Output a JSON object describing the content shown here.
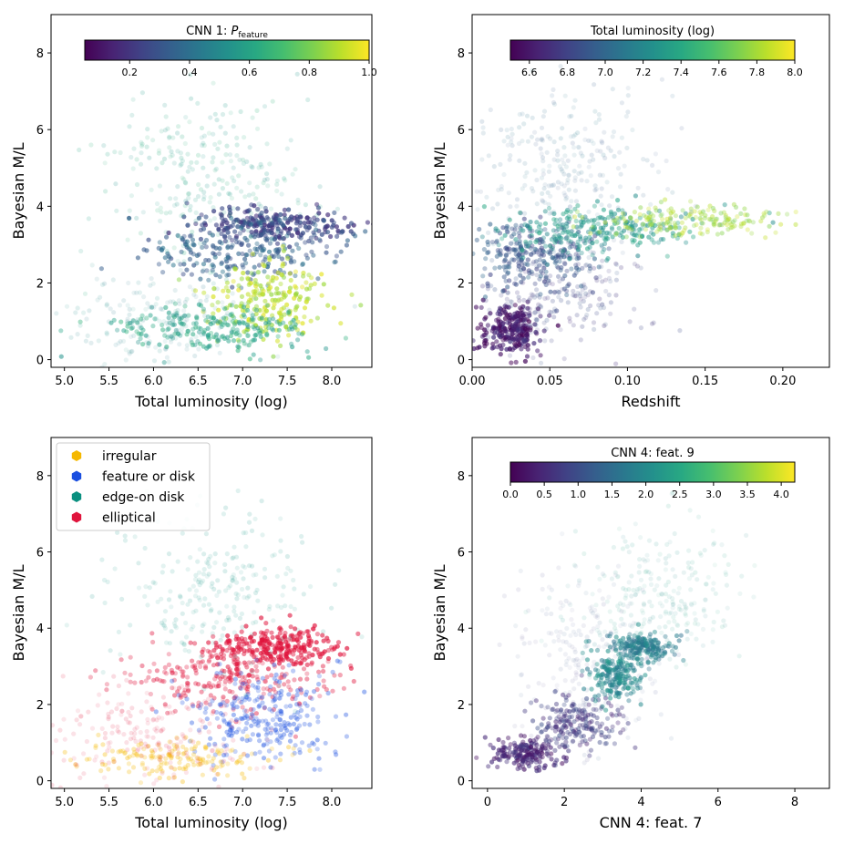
{
  "chart_data": [
    {
      "type": "scatter",
      "panel": "top-left",
      "xlabel": "Total luminosity (log)",
      "ylabel": "Bayesian M/L",
      "xlim": [
        4.85,
        8.45
      ],
      "ylim": [
        -0.2,
        9
      ],
      "xticks": [
        "5.0",
        "5.5",
        "6.0",
        "6.5",
        "7.0",
        "7.5",
        "8.0"
      ],
      "xtick_values": [
        5.0,
        5.5,
        6.0,
        6.5,
        7.0,
        7.5,
        8.0
      ],
      "yticks": [
        "0",
        "2",
        "4",
        "6",
        "8"
      ],
      "ytick_values": [
        0,
        2,
        4,
        6,
        8
      ],
      "colorbar": {
        "title_main": "CNN 1: ",
        "title_italic": "P",
        "title_sub": "feature",
        "range": [
          0.05,
          1.0
        ],
        "ticks": [
          "0.2",
          "0.4",
          "0.6",
          "0.8",
          "1.0"
        ],
        "tick_values": [
          0.2,
          0.4,
          0.6,
          0.8,
          1.0
        ],
        "colormap": "viridis"
      },
      "clusters": [
        {
          "cx": 7.3,
          "cy": 3.5,
          "sx": 0.45,
          "sy": 0.22,
          "n": 260,
          "cval": 0.25,
          "alpha": 0.8
        },
        {
          "cx": 7.0,
          "cy": 2.8,
          "sx": 0.55,
          "sy": 0.35,
          "n": 220,
          "cval": 0.35,
          "alpha": 0.65
        },
        {
          "cx": 7.3,
          "cy": 1.5,
          "sx": 0.35,
          "sy": 0.55,
          "n": 220,
          "cval": 0.9,
          "alpha": 0.7
        },
        {
          "cx": 6.7,
          "cy": 0.8,
          "sx": 0.55,
          "sy": 0.3,
          "n": 220,
          "cval": 0.6,
          "alpha": 0.55
        },
        {
          "cx": 6.6,
          "cy": 4.8,
          "sx": 0.6,
          "sy": 1.0,
          "n": 260,
          "cval": 0.6,
          "alpha": 0.2
        },
        {
          "cx": 6.1,
          "cy": 1.0,
          "sx": 0.6,
          "sy": 0.6,
          "n": 200,
          "cval": 0.5,
          "alpha": 0.15
        }
      ]
    },
    {
      "type": "scatter",
      "panel": "top-right",
      "xlabel": "Redshift",
      "ylabel": "Bayesian M/L",
      "xlim": [
        0.0,
        0.23
      ],
      "ylim": [
        -0.2,
        9
      ],
      "xticks": [
        "0.00",
        "0.05",
        "0.10",
        "0.15",
        "0.20"
      ],
      "xtick_values": [
        0.0,
        0.05,
        0.1,
        0.15,
        0.2
      ],
      "yticks": [
        "0",
        "2",
        "4",
        "6",
        "8"
      ],
      "ytick_values": [
        0,
        2,
        4,
        6,
        8
      ],
      "colorbar": {
        "title_main": "Total luminosity (log)",
        "title_italic": "",
        "title_sub": "",
        "range": [
          6.5,
          8.0
        ],
        "ticks": [
          "6.6",
          "6.8",
          "7.0",
          "7.2",
          "7.4",
          "7.6",
          "7.8",
          "8.0"
        ],
        "tick_values": [
          6.6,
          6.8,
          7.0,
          7.2,
          7.4,
          7.6,
          7.8,
          8.0
        ],
        "colormap": "viridis"
      },
      "clusters": [
        {
          "cx": 0.025,
          "cy": 0.8,
          "sx": 0.01,
          "sy": 0.35,
          "n": 240,
          "cval": 6.6,
          "alpha": 0.75
        },
        {
          "cx": 0.04,
          "cy": 2.7,
          "sx": 0.02,
          "sy": 0.5,
          "n": 260,
          "cval": 6.9,
          "alpha": 0.55
        },
        {
          "cx": 0.08,
          "cy": 3.4,
          "sx": 0.03,
          "sy": 0.3,
          "n": 260,
          "cval": 7.3,
          "alpha": 0.55
        },
        {
          "cx": 0.14,
          "cy": 3.6,
          "sx": 0.03,
          "sy": 0.2,
          "n": 180,
          "cval": 7.8,
          "alpha": 0.45
        },
        {
          "cx": 0.06,
          "cy": 5.0,
          "sx": 0.03,
          "sy": 1.0,
          "n": 260,
          "cval": 7.0,
          "alpha": 0.15
        },
        {
          "cx": 0.05,
          "cy": 1.6,
          "sx": 0.03,
          "sy": 0.7,
          "n": 200,
          "cval": 6.8,
          "alpha": 0.25
        }
      ]
    },
    {
      "type": "scatter",
      "panel": "bottom-left",
      "xlabel": "Total luminosity (log)",
      "ylabel": "Bayesian M/L",
      "xlim": [
        4.85,
        8.45
      ],
      "ylim": [
        -0.2,
        9
      ],
      "xticks": [
        "5.0",
        "5.5",
        "6.0",
        "6.5",
        "7.0",
        "7.5",
        "8.0"
      ],
      "xtick_values": [
        5.0,
        5.5,
        6.0,
        6.5,
        7.0,
        7.5,
        8.0
      ],
      "yticks": [
        "0",
        "2",
        "4",
        "6",
        "8"
      ],
      "ytick_values": [
        0,
        2,
        4,
        6,
        8
      ],
      "legend": {
        "placement": "top-left",
        "entries": [
          {
            "label": "irregular",
            "color": "#f5b800"
          },
          {
            "label": "feature or disk",
            "color": "#1a4fe0"
          },
          {
            "label": "edge-on disk",
            "color": "#0a9080"
          },
          {
            "label": "elliptical",
            "color": "#e0143c"
          }
        ]
      },
      "clusters": [
        {
          "cx": 7.4,
          "cy": 3.5,
          "sx": 0.4,
          "sy": 0.25,
          "n": 260,
          "color": "#e0143c",
          "alpha": 0.7
        },
        {
          "cx": 6.9,
          "cy": 2.7,
          "sx": 0.6,
          "sy": 0.45,
          "n": 260,
          "color": "#e0143c",
          "alpha": 0.45
        },
        {
          "cx": 7.2,
          "cy": 1.7,
          "sx": 0.4,
          "sy": 0.6,
          "n": 260,
          "color": "#1a4fe0",
          "alpha": 0.4
        },
        {
          "cx": 6.2,
          "cy": 0.6,
          "sx": 0.5,
          "sy": 0.25,
          "n": 160,
          "color": "#f5b800",
          "alpha": 0.35
        },
        {
          "cx": 6.7,
          "cy": 5.0,
          "sx": 0.6,
          "sy": 1.0,
          "n": 240,
          "color": "#0a9080",
          "alpha": 0.15
        },
        {
          "cx": 6.0,
          "cy": 1.2,
          "sx": 0.6,
          "sy": 0.6,
          "n": 200,
          "color": "#e0143c",
          "alpha": 0.15
        }
      ]
    },
    {
      "type": "scatter",
      "panel": "bottom-right",
      "xlabel": "CNN 4: feat. 7",
      "ylabel": "Bayesian M/L",
      "xlim": [
        -0.4,
        8.9
      ],
      "ylim": [
        -0.2,
        9
      ],
      "xticks": [
        "0",
        "2",
        "4",
        "6",
        "8"
      ],
      "xtick_values": [
        0,
        2,
        4,
        6,
        8
      ],
      "yticks": [
        "0",
        "2",
        "4",
        "6",
        "8"
      ],
      "ytick_values": [
        0,
        2,
        4,
        6,
        8
      ],
      "colorbar": {
        "title_main": "CNN 4: feat. 9",
        "title_italic": "",
        "title_sub": "",
        "range": [
          0.0,
          4.2
        ],
        "ticks": [
          "0.0",
          "0.5",
          "1.0",
          "1.5",
          "2.0",
          "2.5",
          "3.0",
          "3.5",
          "4.0"
        ],
        "tick_values": [
          0.0,
          0.5,
          1.0,
          1.5,
          2.0,
          2.5,
          3.0,
          3.5,
          4.0
        ],
        "colormap": "viridis"
      },
      "clusters": [
        {
          "cx": 1.0,
          "cy": 0.7,
          "sx": 0.45,
          "sy": 0.2,
          "n": 180,
          "cval": 0.4,
          "alpha": 0.65
        },
        {
          "cx": 2.3,
          "cy": 1.5,
          "sx": 0.6,
          "sy": 0.35,
          "n": 200,
          "cval": 0.7,
          "alpha": 0.5
        },
        {
          "cx": 3.3,
          "cy": 2.8,
          "sx": 0.35,
          "sy": 0.35,
          "n": 200,
          "cval": 2.0,
          "alpha": 0.6
        },
        {
          "cx": 4.0,
          "cy": 3.5,
          "sx": 0.45,
          "sy": 0.2,
          "n": 200,
          "cval": 1.8,
          "alpha": 0.55
        },
        {
          "cx": 4.5,
          "cy": 4.8,
          "sx": 1.1,
          "sy": 0.8,
          "n": 240,
          "cval": 2.2,
          "alpha": 0.12
        },
        {
          "cx": 2.5,
          "cy": 3.2,
          "sx": 1.0,
          "sy": 1.2,
          "n": 220,
          "cval": 1.0,
          "alpha": 0.1
        }
      ]
    }
  ]
}
